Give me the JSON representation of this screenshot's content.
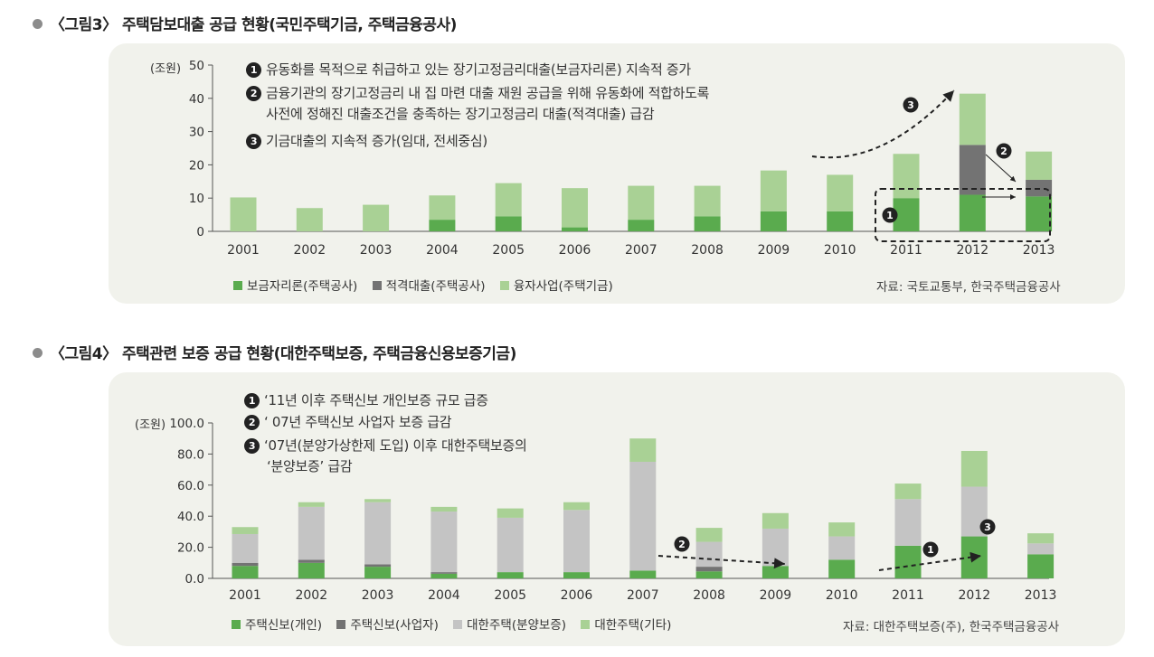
{
  "fig3": {
    "title": "〈그림3〉 주택담보대출 공급 현황(국민주택기금, 주택금융공사)",
    "unit": "(조원)",
    "notes": [
      {
        "num": "1",
        "text": "유동화를 목적으로 취급하고 있는 장기고정금리대출(보금자리론) 지속적 증가"
      },
      {
        "num": "2",
        "text": "금융기관의 장기고정금리 내 집 마련 대출 재원 공급을 위해 유동화에 적합하도록"
      },
      {
        "num": "",
        "text": "사전에 정해진 대출조건을 충족하는 장기고정금리 대출(적격대출) 급감"
      },
      {
        "num": "3",
        "text": "기금대출의 지속적 증가(임대, 전세중심)"
      }
    ],
    "source": "자료: 국토교통부, 한국주택금융공사",
    "chart_data": {
      "type": "bar",
      "stacked": true,
      "categories": [
        "2001",
        "2002",
        "2003",
        "2004",
        "2005",
        "2006",
        "2007",
        "2008",
        "2009",
        "2010",
        "2011",
        "2012",
        "2013"
      ],
      "ylim": [
        0,
        50
      ],
      "yticks": [
        "0",
        "10",
        "20",
        "30",
        "40",
        "50"
      ],
      "ylabel": "(조원)",
      "series": [
        {
          "name": "보금자리론(주택공사)",
          "color": "#5aab4e",
          "values": [
            0,
            0,
            0,
            3.5,
            4.5,
            1.2,
            3.5,
            4.5,
            6,
            6,
            10,
            11,
            10.5
          ]
        },
        {
          "name": "적격대출(주택공사)",
          "color": "#737373",
          "values": [
            0,
            0,
            0,
            0,
            0,
            0,
            0,
            0,
            0,
            0,
            0,
            15,
            5
          ]
        },
        {
          "name": "융자사업(주택기금)",
          "color": "#a9d195",
          "values": [
            10.2,
            7,
            8,
            7.3,
            10,
            11.8,
            10.2,
            9.2,
            12.3,
            11,
            13.3,
            15.4,
            8.5
          ]
        }
      ],
      "annotations": [
        "1",
        "2",
        "3"
      ]
    }
  },
  "fig4": {
    "title": "〈그림4〉 주택관련 보증 공급 현황(대한주택보증, 주택금융신용보증기금)",
    "unit": "(조원)",
    "notes": [
      {
        "num": "1",
        "text": "‘11년 이후 주택신보 개인보증 규모 급증"
      },
      {
        "num": "2",
        "text": "‘ 07년 주택신보 사업자 보증 급감"
      },
      {
        "num": "3",
        "text": "‘07년(분양가상한제 도입) 이후 대한주택보증의"
      },
      {
        "num": "",
        "text": "‘분양보증’ 급감"
      }
    ],
    "source": "자료: 대한주택보증(주), 한국주택금융공사",
    "chart_data": {
      "type": "bar",
      "stacked": true,
      "categories": [
        "2001",
        "2002",
        "2003",
        "2004",
        "2005",
        "2006",
        "2007",
        "2008",
        "2009",
        "2010",
        "2011",
        "2012",
        "2013"
      ],
      "ylim": [
        0,
        100
      ],
      "yticks": [
        "0.0",
        "20.0",
        "40.0",
        "60.0",
        "80.0",
        "100.0"
      ],
      "ylabel": "(조원)",
      "series": [
        {
          "name": "주택신보(개인)",
          "color": "#5aab4e",
          "values": [
            8,
            10,
            7.5,
            3,
            4,
            4,
            5,
            4.5,
            8,
            12,
            21,
            27,
            15.5
          ]
        },
        {
          "name": "주택신보(사업자)",
          "color": "#737373",
          "values": [
            2,
            2,
            1.5,
            1,
            0,
            0,
            0,
            3,
            0,
            0,
            0,
            0,
            0
          ]
        },
        {
          "name": "대한주택(분양보증)",
          "color": "#c4c4c4",
          "values": [
            18.5,
            34,
            40,
            39,
            35,
            40,
            70,
            16,
            24,
            15,
            30,
            32,
            7
          ]
        },
        {
          "name": "대한주택(기타)",
          "color": "#a9d195",
          "values": [
            4.5,
            3,
            2,
            3,
            6,
            5,
            15,
            9,
            10,
            9,
            10,
            23,
            6.5
          ]
        }
      ],
      "annotations": [
        "1",
        "2",
        "3"
      ]
    }
  }
}
